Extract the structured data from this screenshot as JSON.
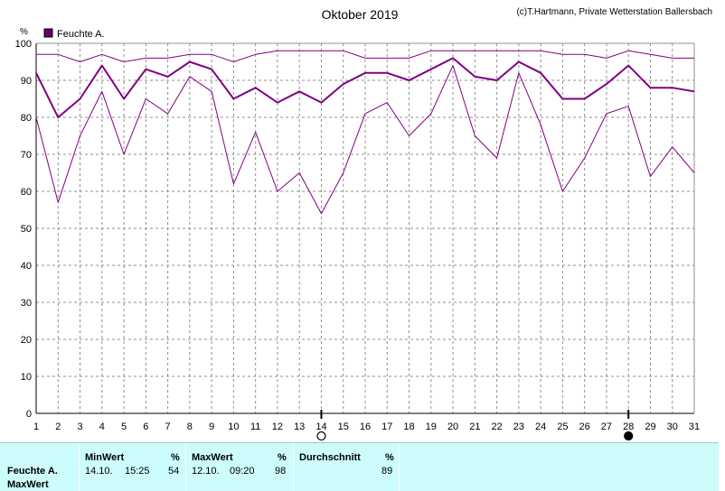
{
  "title": "Oktober 2019",
  "copyright": "(c)T.Hartmann, Private Wetterstation Ballersbach",
  "legend": {
    "label": "Feuchte A.",
    "color": "#660066"
  },
  "colors": {
    "series": "#800080",
    "grid": "#909090"
  },
  "chart_data": {
    "type": "line",
    "ylabel": "%",
    "ylim": [
      0,
      100
    ],
    "yticks": [
      0,
      10,
      20,
      30,
      40,
      50,
      60,
      70,
      80,
      90,
      100
    ],
    "x": [
      1,
      2,
      3,
      4,
      5,
      6,
      7,
      8,
      9,
      10,
      11,
      12,
      13,
      14,
      15,
      16,
      17,
      18,
      19,
      20,
      21,
      22,
      23,
      24,
      25,
      26,
      27,
      28,
      29,
      30,
      31
    ],
    "series": [
      {
        "role": "max",
        "width": 1,
        "values": [
          97,
          97,
          95,
          97,
          95,
          96,
          96,
          97,
          97,
          95,
          97,
          98,
          98,
          98,
          98,
          96,
          96,
          96,
          98,
          98,
          98,
          98,
          98,
          98,
          97,
          97,
          96,
          98,
          97,
          96,
          96
        ]
      },
      {
        "name": "Feuchte A.",
        "role": "avg",
        "width": 2,
        "values": [
          92,
          80,
          85,
          94,
          85,
          93,
          91,
          95,
          93,
          85,
          88,
          84,
          87,
          84,
          89,
          92,
          92,
          90,
          93,
          96,
          91,
          90,
          95,
          92,
          85,
          85,
          89,
          94,
          88,
          88,
          87
        ]
      },
      {
        "role": "min",
        "width": 1,
        "values": [
          80,
          57,
          75,
          87,
          70,
          85,
          81,
          91,
          87,
          62,
          76,
          60,
          65,
          54,
          65,
          81,
          84,
          75,
          81,
          94,
          75,
          69,
          92,
          78,
          60,
          69,
          81,
          83,
          64,
          72,
          65
        ]
      }
    ],
    "markers": [
      {
        "x": 14,
        "type": "full-moon"
      },
      {
        "x": 28,
        "type": "new-moon"
      }
    ]
  },
  "stats": {
    "headers": {
      "min": "MinWert",
      "max": "MaxWert",
      "avg": "Durchschnitt",
      "unit": "%"
    },
    "row": {
      "label": "Feuchte A.",
      "min_date": "14.10.",
      "min_time": "15:25",
      "min_value": "54",
      "max_date": "12.10.",
      "max_time": "09:20",
      "max_value": "98",
      "avg_value": "89"
    },
    "row2_label": "MaxWert"
  }
}
